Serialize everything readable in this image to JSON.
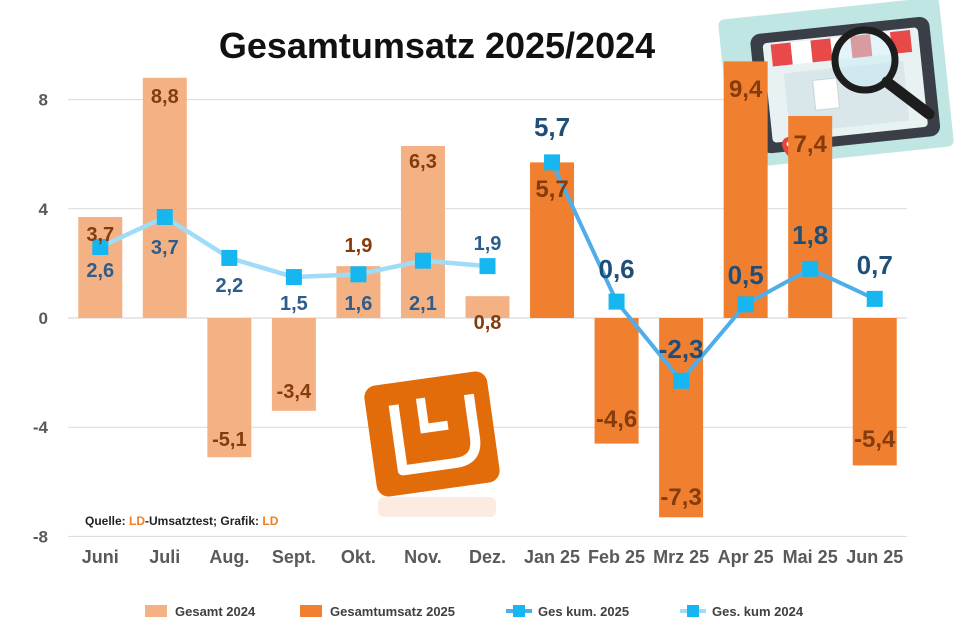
{
  "chart_data": {
    "type": "bar",
    "title": "Gesamtumsatz 2025/2024",
    "categories": [
      "Juni",
      "Juli",
      "Aug.",
      "Sept.",
      "Okt.",
      "Nov.",
      "Dez.",
      "Jan 25",
      "Feb 25",
      "Mrz 25",
      "Apr 25",
      "Mai 25",
      "Jun 25"
    ],
    "ylim": [
      -8,
      9.5
    ],
    "yticks": [
      8,
      4,
      0,
      -4,
      -8
    ],
    "ytick_labels": [
      "8",
      "4",
      "0",
      "-4",
      "-8"
    ],
    "grid": true,
    "legend_position": "bottom",
    "series": [
      {
        "name": "Gesamt 2024",
        "type": "bar",
        "color": "#f4b183",
        "values": [
          3.7,
          8.8,
          -5.1,
          -3.4,
          1.9,
          6.3,
          0.8,
          null,
          null,
          null,
          null,
          null,
          null
        ],
        "labels": [
          "3,7",
          "8,8",
          "-5,1",
          "-3,4",
          "1,9",
          "6,3",
          "0,8",
          "",
          "",
          "",
          "",
          "",
          ""
        ]
      },
      {
        "name": "Gesamtumsatz 2025",
        "type": "bar",
        "color": "#f07f30",
        "values": [
          null,
          null,
          null,
          null,
          null,
          null,
          null,
          5.7,
          -4.6,
          -7.3,
          9.4,
          7.4,
          -5.4
        ],
        "labels": [
          "",
          "",
          "",
          "",
          "",
          "",
          "",
          "5,7",
          "-4,6",
          "-7,3",
          "9,4",
          "7,4",
          "-5,4"
        ]
      },
      {
        "name": "Ges kum. 2025",
        "type": "line",
        "color": "#4faeea",
        "values": [
          null,
          null,
          null,
          null,
          null,
          null,
          null,
          5.7,
          0.6,
          -2.3,
          0.5,
          1.8,
          0.7
        ],
        "labels": [
          "",
          "",
          "",
          "",
          "",
          "",
          "",
          "5,7",
          "0,6",
          "-2,3",
          "0,5",
          "1,8",
          "0,7"
        ]
      },
      {
        "name": "Ges. kum 2024",
        "type": "line",
        "color": "#9fdcf7",
        "values": [
          2.6,
          3.7,
          2.2,
          1.5,
          1.6,
          2.1,
          1.9,
          null,
          null,
          null,
          null,
          null,
          null
        ],
        "labels": [
          "2,6",
          "3,7",
          "2,2",
          "1,5",
          "1,6",
          "2,1",
          "1,9",
          "",
          "",
          "",
          "",
          "",
          ""
        ]
      }
    ],
    "marker_color": "#16b6f0"
  },
  "source_note": {
    "prefix": "Quelle: ",
    "accent1": "LD",
    "middle": "-Umsatztest; Grafik: ",
    "accent2": "LD"
  },
  "logo_text": "LD",
  "illustration": "shop-magnifier-icon"
}
